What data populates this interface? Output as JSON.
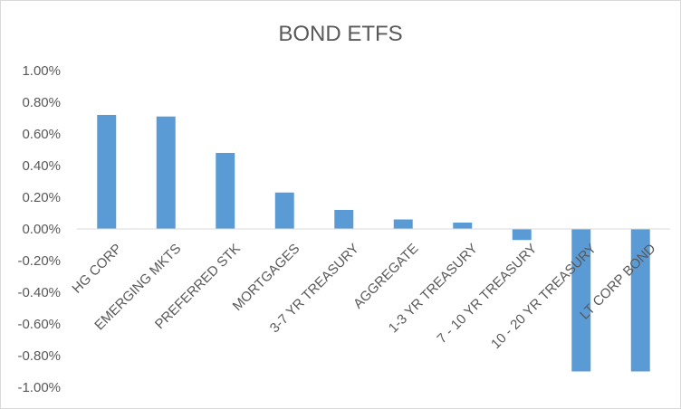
{
  "chart_data": {
    "type": "bar",
    "title": "BOND ETFS",
    "xlabel": "",
    "ylabel": "",
    "categories": [
      "HG CORP",
      "EMERGING MKTS",
      "PREFERRED STK",
      "MORTGAGES",
      "3-7 YR TREASURY",
      "AGGREGATE",
      "1-3 YR TREASURY",
      "7 - 10 YR TREASURY",
      "10 - 20 YR TREASURY",
      "LT CORP BOND"
    ],
    "values": [
      0.72,
      0.71,
      0.48,
      0.23,
      0.12,
      0.06,
      0.04,
      -0.07,
      -0.9,
      -0.9
    ],
    "ylim": [
      -1.0,
      1.0
    ],
    "ytick_step": 0.2,
    "ytick_labels": [
      "1.00%",
      "0.80%",
      "0.60%",
      "0.40%",
      "0.20%",
      "0.00%",
      "-0.20%",
      "-0.40%",
      "-0.60%",
      "-0.80%",
      "-1.00%"
    ],
    "grid": false,
    "legend": "none",
    "colors": {
      "bar": "#5b9bd5",
      "axis": "#d9d9d9",
      "text": "#595959"
    }
  }
}
